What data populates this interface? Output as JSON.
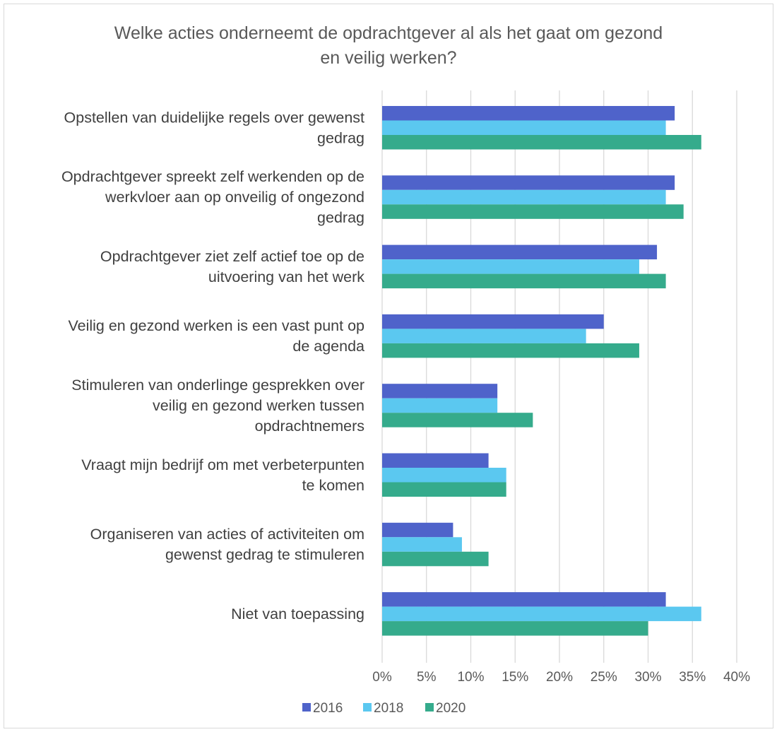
{
  "chart_data": {
    "type": "bar",
    "orientation": "horizontal",
    "title": "Welke acties onderneemt de opdrachtgever al als het gaat om gezond en veilig werken?",
    "title_lines": [
      "Welke acties onderneemt de opdrachtgever al als het gaat om gezond",
      "en veilig werken?"
    ],
    "categories": [
      "Opstellen van duidelijke regels over gewenst gedrag",
      "Opdrachtgever spreekt zelf werkenden op de werkvloer aan op onveilig of ongezond gedrag",
      "Opdrachtgever ziet zelf actief toe op de uitvoering van het werk",
      "Veilig en gezond werken is een vast punt op de agenda",
      "Stimuleren van onderlinge gesprekken over veilig en gezond werken tussen opdrachtnemers",
      "Vraagt mijn bedrijf om met verbeterpunten te komen",
      "Organiseren van acties of activiteiten om gewenst gedrag te stimuleren",
      "Niet van toepassing"
    ],
    "category_label_lines": [
      [
        "Opstellen van duidelijke regels over gewenst",
        "gedrag"
      ],
      [
        "Opdrachtgever spreekt zelf werkenden op de",
        "werkvloer aan op onveilig of ongezond",
        "gedrag"
      ],
      [
        "Opdrachtgever ziet zelf actief toe op de",
        "uitvoering van het werk"
      ],
      [
        "Veilig en gezond werken is een vast punt op",
        "de agenda"
      ],
      [
        "Stimuleren van onderlinge gesprekken over",
        "veilig en gezond werken tussen",
        "opdrachtnemers"
      ],
      [
        "Vraagt mijn bedrijf om met verbeterpunten",
        "te komen"
      ],
      [
        "Organiseren van acties of activiteiten om",
        "gewenst gedrag te stimuleren"
      ],
      [
        "Niet van toepassing"
      ]
    ],
    "series": [
      {
        "name": "2016",
        "color": "#4f63ca",
        "values": [
          33,
          33,
          31,
          25,
          13,
          12,
          8,
          32
        ]
      },
      {
        "name": "2018",
        "color": "#5bc8f0",
        "values": [
          32,
          32,
          29,
          23,
          13,
          14,
          9,
          36
        ]
      },
      {
        "name": "2020",
        "color": "#35ab8c",
        "values": [
          36,
          34,
          32,
          29,
          17,
          14,
          12,
          30
        ]
      }
    ],
    "unit": "%",
    "xlim": [
      0,
      40
    ],
    "ticks": [
      0,
      5,
      10,
      15,
      20,
      25,
      30,
      35,
      40
    ],
    "tick_labels": [
      "0%",
      "5%",
      "10%",
      "15%",
      "20%",
      "25%",
      "30%",
      "35%",
      "40%"
    ],
    "grid": true,
    "legend_position": "bottom"
  }
}
